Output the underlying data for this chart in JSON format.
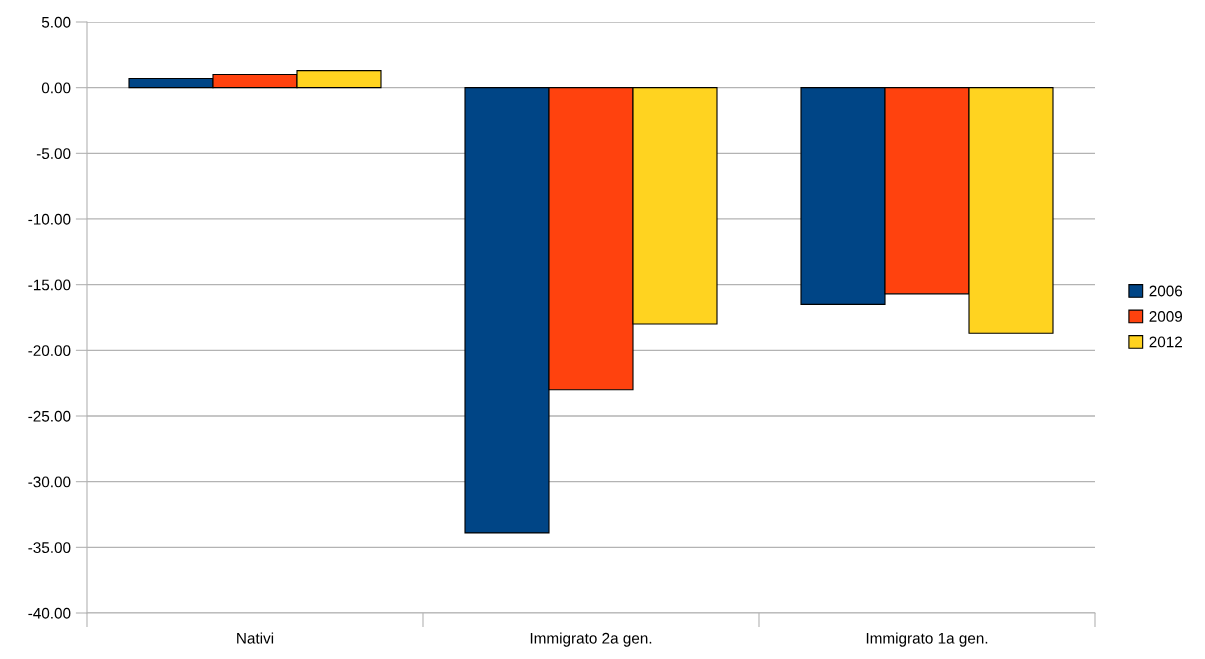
{
  "chart_data": {
    "type": "bar",
    "categories": [
      "Nativi",
      "Immigrato 2a gen.",
      "Immigrato 1a gen."
    ],
    "series": [
      {
        "name": "2006",
        "color": "#004586",
        "values": [
          0.7,
          -33.9,
          -16.5
        ]
      },
      {
        "name": "2009",
        "color": "#ff420e",
        "values": [
          1.0,
          -23.0,
          -15.7
        ]
      },
      {
        "name": "2012",
        "color": "#ffd320",
        "values": [
          1.3,
          -18.0,
          -18.7
        ]
      }
    ],
    "ylim": [
      -40,
      5
    ],
    "yticks": [
      {
        "value": -40,
        "label": "-40.00"
      },
      {
        "value": -35,
        "label": "-35.00"
      },
      {
        "value": -30,
        "label": "-30.00"
      },
      {
        "value": -25,
        "label": "-25.00"
      },
      {
        "value": -20,
        "label": "-20.00"
      },
      {
        "value": -15,
        "label": "-15.00"
      },
      {
        "value": -10,
        "label": "-10.00"
      },
      {
        "value": -5,
        "label": "-5.00"
      },
      {
        "value": 0,
        "label": "0.00"
      },
      {
        "value": 5,
        "label": "5.00"
      }
    ],
    "grid": "y",
    "legend": "right"
  }
}
